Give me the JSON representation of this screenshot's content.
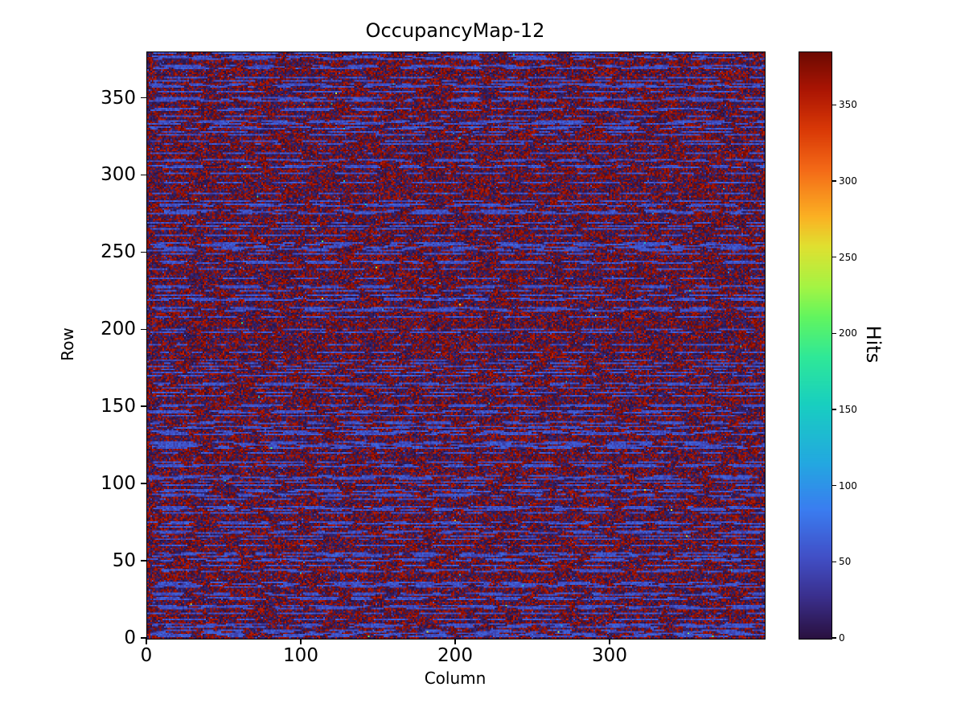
{
  "figure": {
    "title": "OccupancyMap-12",
    "xlabel": "Column",
    "ylabel": "Row",
    "colorbar_label": "Hits"
  },
  "chart_data": {
    "type": "heatmap",
    "title": "OccupancyMap-12",
    "xlabel": "Column",
    "ylabel": "Row",
    "colorbar_label": "Hits",
    "x_range": [
      0,
      400
    ],
    "y_range": [
      0,
      380
    ],
    "value_range": [
      0,
      385
    ],
    "x_ticks": [
      0,
      100,
      200,
      300
    ],
    "y_ticks": [
      0,
      50,
      100,
      150,
      200,
      250,
      300,
      350
    ],
    "colorbar_ticks": [
      0,
      50,
      100,
      150,
      200,
      250,
      300,
      350
    ],
    "grid": {
      "cols": 400,
      "rows": 380
    },
    "legend_position": "right-colorbar",
    "grid_lines": false,
    "pattern": "Dense pixel-detector occupancy noise: background is a fine mottle of near-zero (dark navy) pixels and near-saturated (dark red, ~350-385 hits) pixels; roughly every 2-3 rows is a noisy row drawn as horizontal blue dashes of ~35-72 hits; sparse isolated bright outlier pixels of ~80-265 hits appear across the map.",
    "colormap": {
      "name": "turbo-like",
      "stops": [
        [
          0.0,
          "#2a1140"
        ],
        [
          0.07,
          "#3a2f8c"
        ],
        [
          0.14,
          "#4150c8"
        ],
        [
          0.22,
          "#3a7df0"
        ],
        [
          0.3,
          "#23a8e0"
        ],
        [
          0.4,
          "#18cfc0"
        ],
        [
          0.48,
          "#2fe898"
        ],
        [
          0.55,
          "#63f55e"
        ],
        [
          0.6,
          "#a4f444"
        ],
        [
          0.67,
          "#e0e030"
        ],
        [
          0.72,
          "#fbb123"
        ],
        [
          0.8,
          "#f46a17"
        ],
        [
          0.87,
          "#d93806"
        ],
        [
          0.94,
          "#a81403"
        ],
        [
          1.0,
          "#6e0a02"
        ]
      ]
    },
    "generation": {
      "seed": 12345,
      "high_fraction": 0.45,
      "high_min": 352,
      "high_max": 385,
      "mid_speck_fraction": 0.02,
      "mid_min": 25,
      "mid_max": 65,
      "low_max": 22,
      "streak_row_fraction": 0.4,
      "streak_min": 35,
      "streak_max": 72,
      "dash_min": 3,
      "dash_max": 34,
      "gap_min": 3,
      "gap_max": 26,
      "outliers": 70,
      "outlier_min": 80,
      "outlier_max": 265
    }
  }
}
